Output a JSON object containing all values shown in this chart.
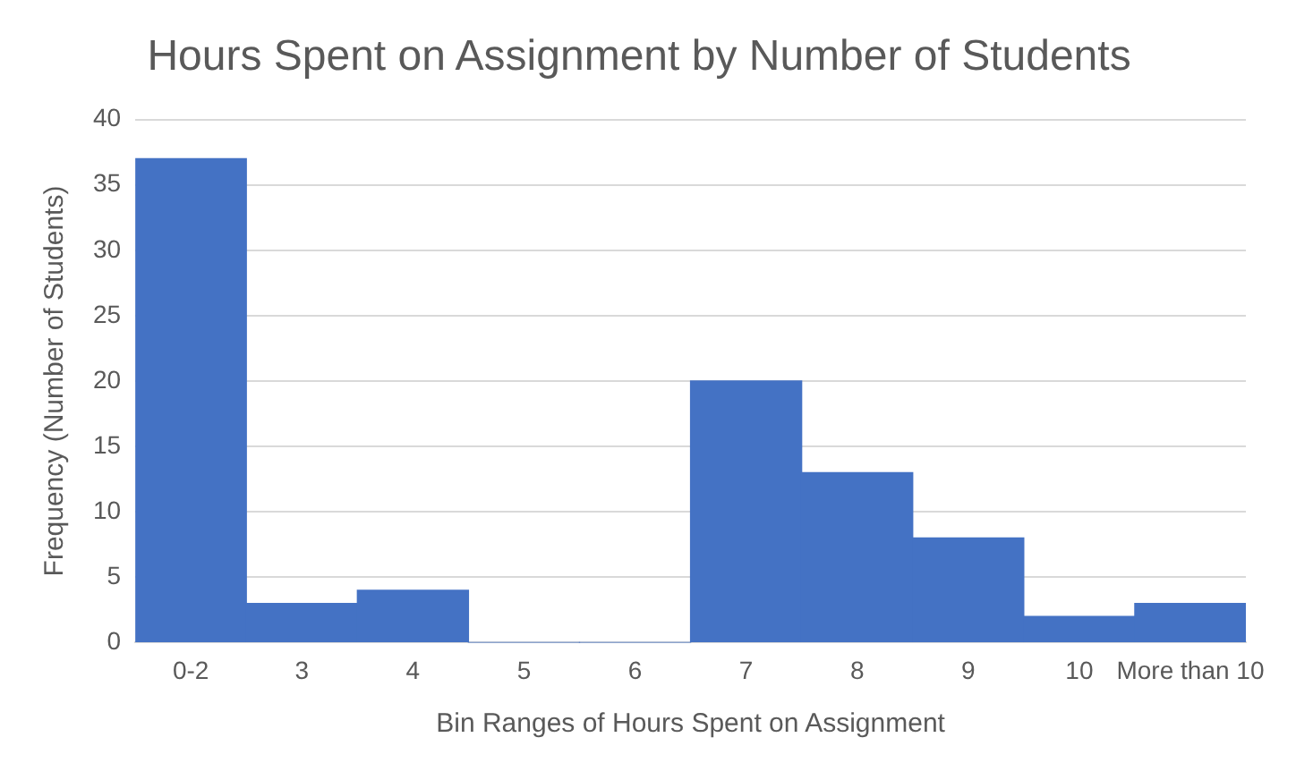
{
  "chart_data": {
    "type": "bar",
    "title": "Hours Spent on Assignment by Number of Students",
    "xlabel": "Bin Ranges of Hours Spent on Assignment",
    "ylabel": "Frequency (Number of Students)",
    "categories": [
      "0-2",
      "3",
      "4",
      "5",
      "6",
      "7",
      "8",
      "9",
      "10",
      "More than 10"
    ],
    "values": [
      37,
      3,
      4,
      0,
      0,
      20,
      13,
      8,
      2,
      3
    ],
    "color": "#4472c4",
    "ylim": [
      0,
      40
    ],
    "yticks": [
      0,
      5,
      10,
      15,
      20,
      25,
      30,
      35,
      40
    ],
    "grid": "y"
  }
}
